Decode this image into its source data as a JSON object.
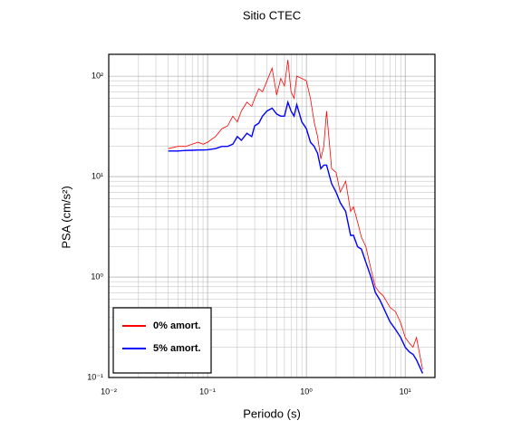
{
  "chart_data": {
    "type": "line",
    "title": "Sitio CTEC",
    "x_label": "Periodo (s)",
    "y_label": "PSA (cm/s²)",
    "log_x": true,
    "log_y": true,
    "grid": true,
    "legend": "lower left",
    "xlim": [
      0.01,
      20
    ],
    "ylim": [
      0.1,
      165
    ],
    "xticks": [
      {
        "value": 0.01,
        "label": "10⁻²"
      },
      {
        "value": 0.1,
        "label": "10⁻¹"
      },
      {
        "value": 1,
        "label": "10⁰"
      },
      {
        "value": 10,
        "label": "10¹"
      }
    ],
    "yticks": [
      {
        "value": 0.1,
        "label": "10⁻¹"
      },
      {
        "value": 1,
        "label": "10⁰"
      },
      {
        "value": 10,
        "label": "10¹"
      },
      {
        "value": 100,
        "label": "10²"
      }
    ],
    "x": [
      0.04,
      0.05,
      0.06,
      0.07,
      0.08,
      0.09,
      0.1,
      0.12,
      0.14,
      0.16,
      0.18,
      0.2,
      0.22,
      0.25,
      0.28,
      0.3,
      0.33,
      0.36,
      0.4,
      0.45,
      0.5,
      0.55,
      0.6,
      0.65,
      0.7,
      0.75,
      0.8,
      0.9,
      1.0,
      1.1,
      1.2,
      1.3,
      1.4,
      1.5,
      1.6,
      1.8,
      2.0,
      2.2,
      2.5,
      2.8,
      3.0,
      3.3,
      3.6,
      4.0,
      4.5,
      5.0,
      5.5,
      6.0,
      7.0,
      8.0,
      9.0,
      10,
      11,
      12,
      13,
      15
    ],
    "series": [
      {
        "name": "0% amort.",
        "color": "#ff0000",
        "width": 0.8,
        "values": [
          19,
          20,
          20,
          21,
          22,
          21,
          22,
          25,
          30,
          32,
          40,
          35,
          45,
          55,
          50,
          60,
          75,
          70,
          90,
          120,
          65,
          95,
          80,
          145,
          70,
          60,
          100,
          95,
          90,
          60,
          35,
          25,
          15,
          20,
          45,
          12,
          11,
          7,
          9,
          4.5,
          5,
          3.5,
          2.5,
          2.0,
          1.2,
          0.8,
          0.7,
          0.65,
          0.5,
          0.45,
          0.35,
          0.25,
          0.22,
          0.2,
          0.25,
          0.12
        ]
      },
      {
        "name": "5% amort.",
        "color": "#0000ff",
        "width": 1.4,
        "values": [
          18,
          18,
          18.2,
          18.3,
          18.4,
          18.4,
          18.5,
          19,
          20,
          20,
          21,
          25,
          23,
          27,
          25,
          32,
          34,
          40,
          45,
          48,
          42,
          40,
          40,
          55,
          45,
          40,
          52,
          35,
          30,
          22,
          20,
          17,
          12,
          13,
          13,
          8.5,
          7,
          5.5,
          4.5,
          2.6,
          2.6,
          2.0,
          1.9,
          1.4,
          1.0,
          0.7,
          0.6,
          0.5,
          0.36,
          0.3,
          0.25,
          0.2,
          0.18,
          0.17,
          0.15,
          0.11
        ]
      }
    ]
  }
}
